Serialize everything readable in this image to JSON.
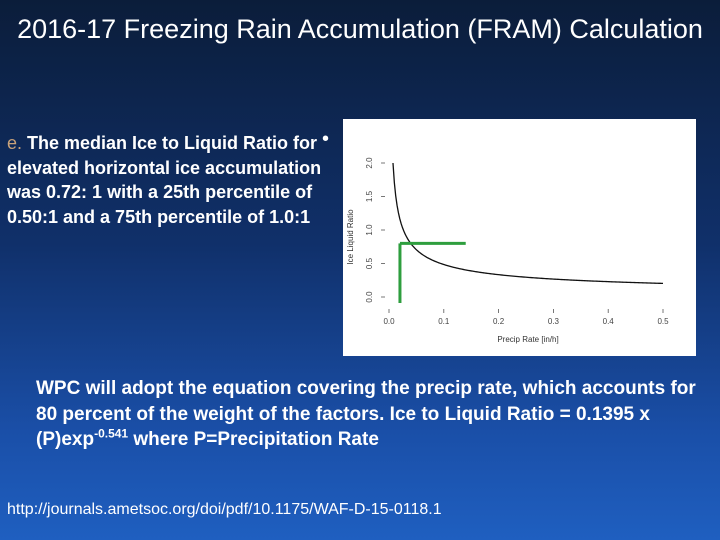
{
  "title": "2016-17 Freezing Rain Accumulation (FRAM) Calculation",
  "left_text": {
    "letter": "e.",
    "body": " The median Ice to Liquid Ratio for elevated horizontal ice accumulation was 0.72: 1 with a 25th percentile of 0.50:1 and a 75th percentile of 1.0:1"
  },
  "bullet": "•",
  "bottom_text": {
    "part1": "WPC will adopt the equation covering the precip rate, which accounts for 80 percent of the weight of the factors. Ice to Liquid Ratio = 0.1395 x (P)exp",
    "exponent": "-0.541",
    "part2": " where P=Precipitation Rate"
  },
  "url": "http://journals.ametsoc.org/doi/pdf/10.1175/WAF-D-15-0118.1",
  "chart_data": {
    "type": "line",
    "xlabel": "Precip Rate [in/h]",
    "ylabel": "Ice Liquid Ratio",
    "xlim": [
      0,
      0.5
    ],
    "ylim": [
      0,
      2.0
    ],
    "x_ticks": [
      0.0,
      0.1,
      0.2,
      0.3,
      0.4,
      0.5
    ],
    "x_tick_labels": [
      "0.0",
      "0.1",
      "0.2",
      "0.3",
      "0.4",
      "0.5"
    ],
    "y_ticks": [
      0.0,
      0.5,
      1.0,
      1.5,
      2.0
    ],
    "y_tick_labels": [
      "0.0",
      "0.5",
      "1.0",
      "1.5",
      "2.0"
    ],
    "curve": {
      "coefficient": 0.1395,
      "exponent": -0.541
    },
    "marker_lines": {
      "color": "#2e9e3e",
      "vertical_x": 0.02,
      "horizontal_y": 0.8,
      "horizontal_x_end": 0.14
    }
  }
}
